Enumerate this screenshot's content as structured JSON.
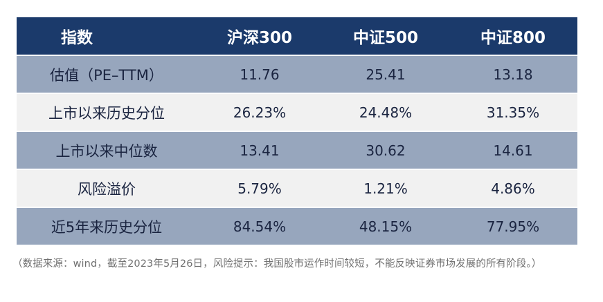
{
  "table": {
    "headers": [
      "指数",
      "沪深300",
      "中证500",
      "中证800"
    ],
    "rows": [
      {
        "label": "估值（PE–TTM）",
        "values": [
          "11.76",
          "25.41",
          "13.18"
        ]
      },
      {
        "label": "上市以来历史分位",
        "values": [
          "26.23%",
          "24.48%",
          "31.35%"
        ]
      },
      {
        "label": "上市以来中位数",
        "values": [
          "13.41",
          "30.62",
          "14.61"
        ]
      },
      {
        "label": "风险溢价",
        "values": [
          "5.79%",
          "1.21%",
          "4.86%"
        ]
      },
      {
        "label": "近5年来历史分位",
        "values": [
          "84.54%",
          "48.15%",
          "77.95%"
        ]
      }
    ]
  },
  "colors": {
    "header_bg": "#1b3a6b",
    "row_shade": "#97a6bd",
    "row_light": "#f1f1f1"
  },
  "note": "（数据来源：wind，截至2023年5月26日，风险提示：我国股市运作时间较短，不能反映证券市场发展的所有阶段。）"
}
